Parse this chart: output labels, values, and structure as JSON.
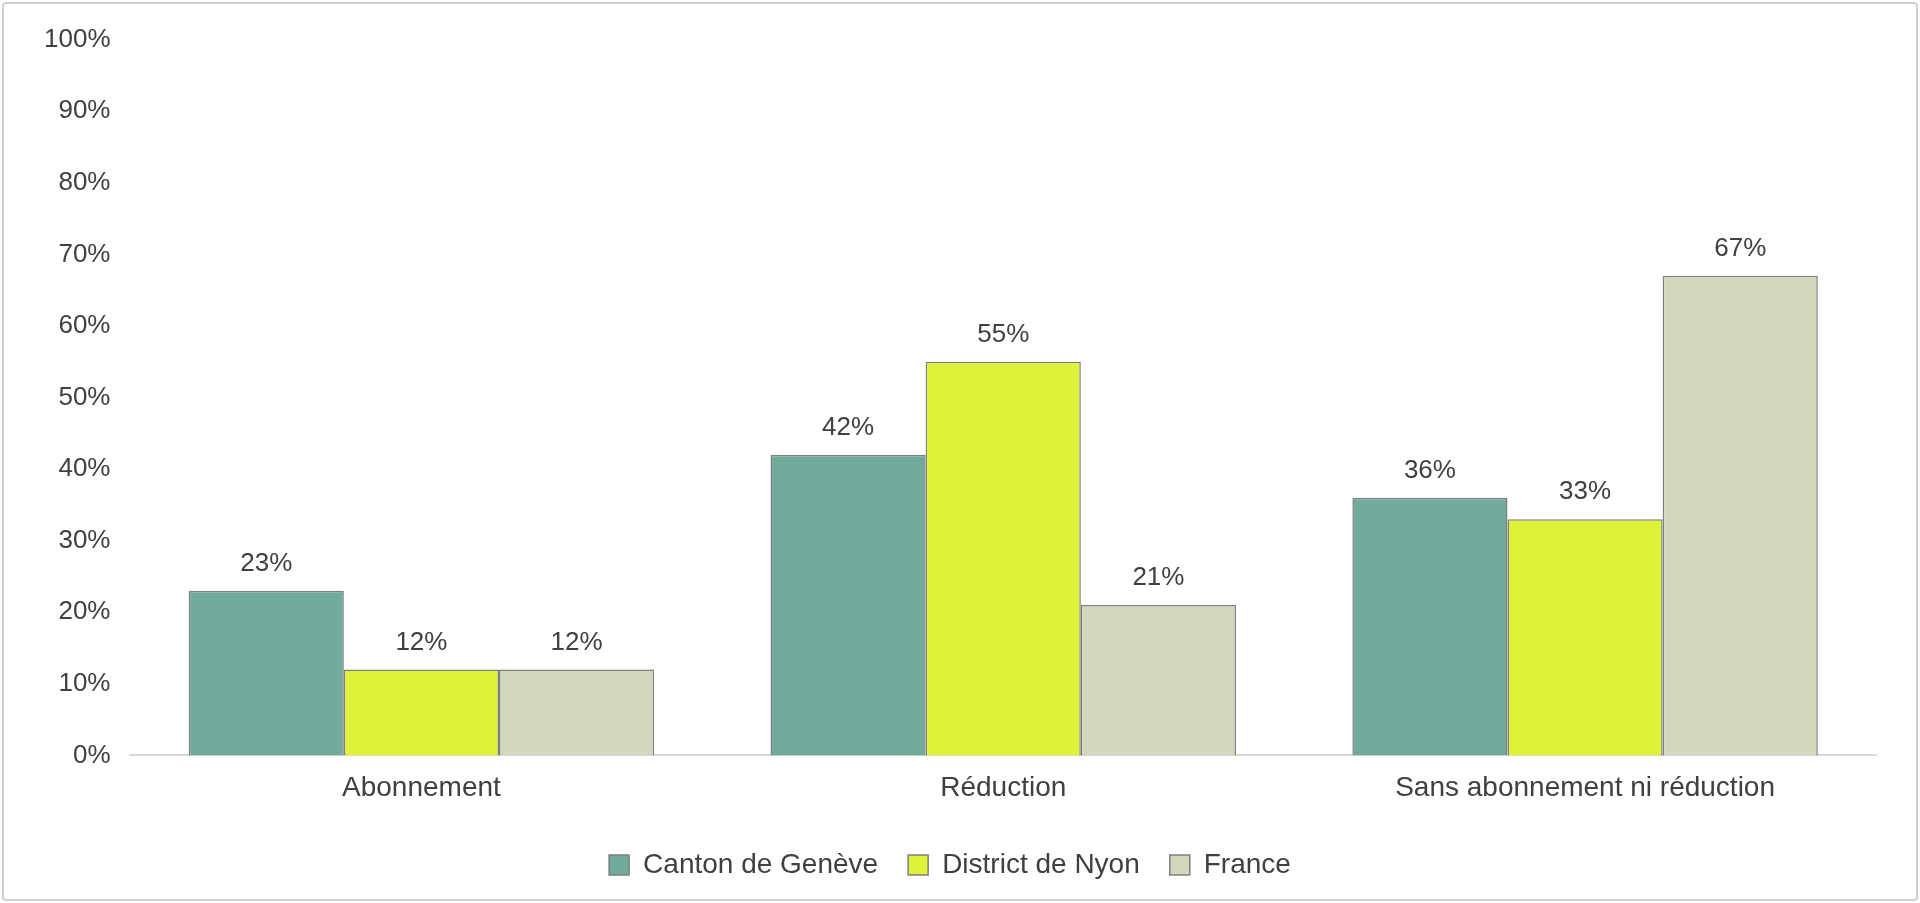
{
  "chart_data": {
    "type": "bar",
    "categories": [
      "Abonnement",
      "Réduction",
      "Sans abonnement ni réduction"
    ],
    "series": [
      {
        "name": "Canton de Genève",
        "color": "#70ab9c",
        "values": [
          23,
          42,
          36
        ],
        "value_labels": [
          "23%",
          "42%",
          "36%"
        ]
      },
      {
        "name": "District de Nyon",
        "color": "#def23a",
        "values": [
          12,
          55,
          33
        ],
        "value_labels": [
          "12%",
          "55%",
          "33%"
        ]
      },
      {
        "name": "France",
        "color": "#d2d8bc",
        "values": [
          12,
          21,
          67
        ],
        "value_labels": [
          "12%",
          "21%",
          "67%"
        ]
      }
    ],
    "ylim": [
      0,
      100
    ],
    "yticks": [
      {
        "value": 0,
        "label": "0%"
      },
      {
        "value": 10,
        "label": "10%"
      },
      {
        "value": 20,
        "label": "20%"
      },
      {
        "value": 30,
        "label": "30%"
      },
      {
        "value": 40,
        "label": "40%"
      },
      {
        "value": 50,
        "label": "50%"
      },
      {
        "value": 60,
        "label": "60%"
      },
      {
        "value": 70,
        "label": "70%"
      },
      {
        "value": 80,
        "label": "80%"
      },
      {
        "value": 90,
        "label": "90%"
      },
      {
        "value": 100,
        "label": "100%"
      }
    ],
    "grid": false,
    "legend": "bottom"
  }
}
